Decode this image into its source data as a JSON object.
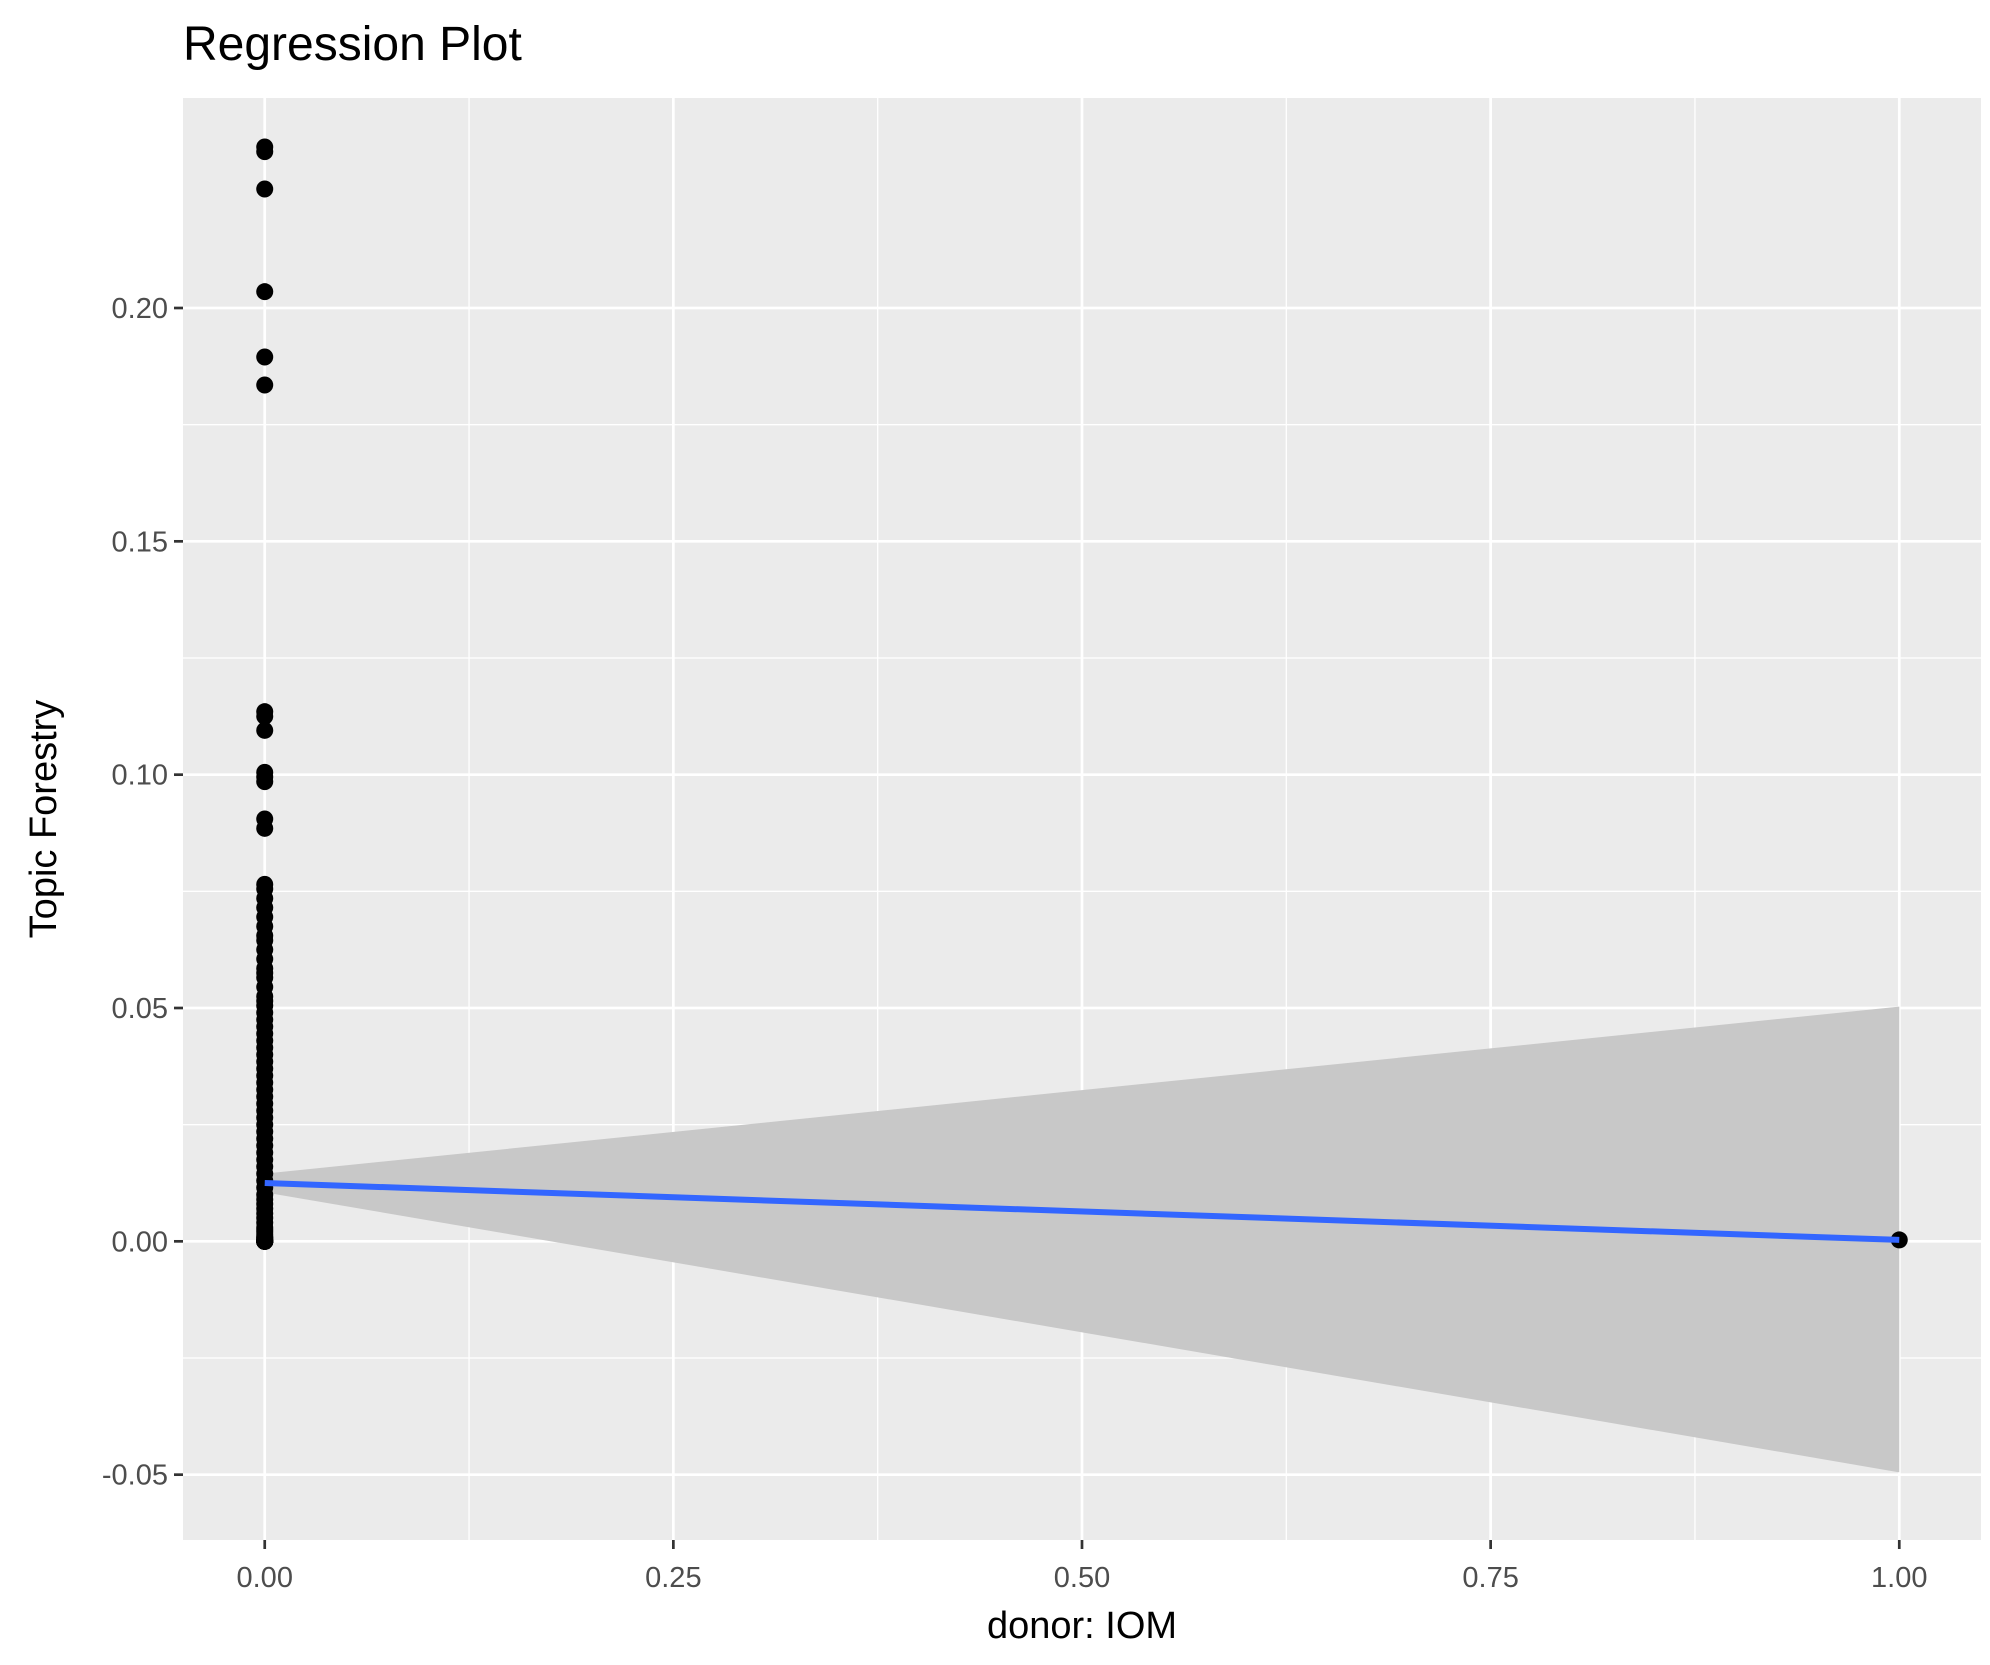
{
  "chart_data": {
    "type": "scatter",
    "title": "Regression Plot",
    "xlabel": "donor: IOM",
    "ylabel": "Topic Forestry",
    "xlim": [
      -0.05,
      1.05
    ],
    "ylim": [
      -0.064,
      0.245
    ],
    "x_ticks": [
      0,
      0.25,
      0.5,
      0.75,
      1
    ],
    "x_tick_labels": [
      "0.00",
      "0.25",
      "0.50",
      "0.75",
      "1.00"
    ],
    "y_ticks": [
      -0.05,
      0,
      0.05,
      0.1,
      0.15,
      0.2
    ],
    "y_tick_labels": [
      "-0.05",
      "0.00",
      "0.05",
      "0.10",
      "0.15",
      "0.20"
    ],
    "grid": true,
    "series": [
      {
        "kind": "points",
        "color": "#000000",
        "x": [
          0,
          0,
          0,
          0,
          0,
          0,
          0,
          0,
          0,
          0,
          0,
          0,
          0,
          0,
          0,
          0,
          0,
          0,
          0,
          0,
          0,
          0,
          0,
          0,
          0,
          0,
          0,
          0,
          0,
          0,
          0,
          0,
          0,
          0,
          0,
          0,
          0,
          0,
          0,
          0,
          0,
          0,
          0,
          0,
          0,
          0,
          0,
          0,
          0,
          0,
          0,
          0,
          0,
          0,
          0,
          0,
          0,
          0,
          0,
          0,
          0,
          0,
          0,
          0,
          0,
          0,
          0,
          0,
          0,
          0,
          0,
          0,
          0,
          0,
          0,
          0,
          0,
          0,
          0,
          0,
          0,
          0,
          0,
          0,
          0,
          0,
          0,
          0,
          0,
          0,
          0,
          1
        ],
        "y": [
          0.2345,
          0.2335,
          0.2255,
          0.2035,
          0.1895,
          0.1835,
          0.1135,
          0.1125,
          0.1095,
          0.1005,
          0.0995,
          0.0985,
          0.0905,
          0.0885,
          0.0765,
          0.0755,
          0.0735,
          0.0715,
          0.0695,
          0.0675,
          0.0655,
          0.0645,
          0.0625,
          0.0605,
          0.0585,
          0.0575,
          0.0565,
          0.0545,
          0.0525,
          0.0515,
          0.0505,
          0.049,
          0.0475,
          0.046,
          0.0445,
          0.043,
          0.0415,
          0.04,
          0.0385,
          0.037,
          0.0355,
          0.034,
          0.0325,
          0.031,
          0.0295,
          0.028,
          0.0265,
          0.025,
          0.0235,
          0.022,
          0.0205,
          0.019,
          0.0175,
          0.016,
          0.0145,
          0.013,
          0.0115,
          0.01,
          0.009,
          0.008,
          0.007,
          0.006,
          0.005,
          0.004,
          0.003,
          0.0025,
          0.002,
          0.0015,
          0.001,
          0.0008,
          0.0006,
          0.0004,
          0.0002,
          0.0001,
          0.0,
          0.0,
          0.0,
          0.0,
          0.0,
          0.0,
          0.0,
          0.0,
          0.0,
          0.0,
          0.0,
          0.0,
          0.0,
          0.0,
          0.0,
          0.0,
          0.0,
          0.0003
        ]
      },
      {
        "kind": "regression-line",
        "color": "#3366ff",
        "x": [
          0,
          1
        ],
        "y": [
          0.0125,
          0.0003
        ]
      },
      {
        "kind": "confidence-band",
        "color": "#c8c8c8",
        "x": [
          0,
          1
        ],
        "lower": [
          0.0105,
          -0.0495
        ],
        "upper": [
          0.0145,
          0.0503
        ]
      }
    ]
  }
}
